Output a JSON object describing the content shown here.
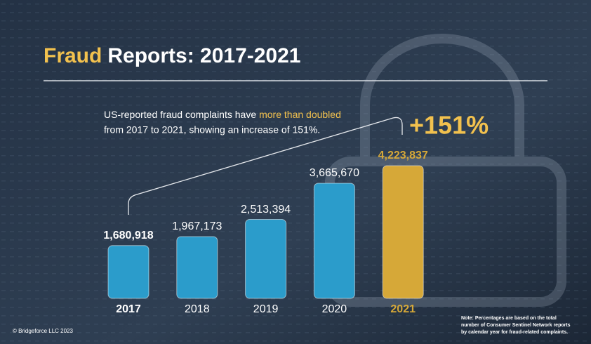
{
  "chart_data": {
    "type": "bar",
    "title_highlight": "Fraud",
    "title": "Reports: 2017-2021",
    "subtitle": [
      "US-reported fraud complaints have",
      "more than doubled",
      "from 2017 to 2021, showing an increase of 151%."
    ],
    "annotation": "+151%",
    "categories": [
      "2017",
      "2018",
      "2019",
      "2020",
      "2021"
    ],
    "values": [
      1680918,
      1967173,
      2513394,
      3665670,
      4223837
    ],
    "value_labels": [
      "1,680,918",
      "1,967,173",
      "2,513,394",
      "3,665,670",
      "4,223,837"
    ],
    "colors": [
      "#2b9ccb",
      "#2b9ccb",
      "#2b9ccb",
      "#2b9ccb",
      "#d6a838"
    ],
    "copyright": "© Bridgeforce LLC 2023",
    "note": [
      "Note: Percentages are based on the total",
      "number of Consumer Sentinel Network reports",
      "by calendar year for fraud-related complaints."
    ]
  }
}
